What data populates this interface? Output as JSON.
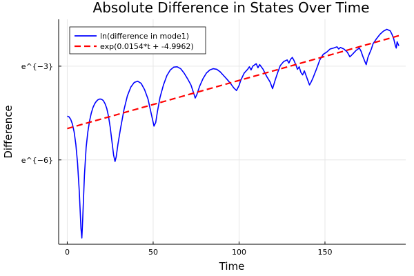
{
  "chart_data": {
    "type": "line",
    "title": "Absolute Difference in States Over Time",
    "xlabel": "Time",
    "ylabel": "Difference",
    "xlim": [
      -5,
      197
    ],
    "ylim": [
      -8.7,
      -1.5
    ],
    "xticks": [
      {
        "value": 0,
        "label": "0"
      },
      {
        "value": 50,
        "label": "50"
      },
      {
        "value": 100,
        "label": "100"
      },
      {
        "value": 150,
        "label": "150"
      }
    ],
    "yticks": [
      {
        "value": -3,
        "label": "e^{−3}"
      },
      {
        "value": -6,
        "label": "e^{−6}"
      }
    ],
    "grid": true,
    "legend_position": "top-left",
    "series": [
      {
        "name": "ln(difference in mode1)",
        "color": "#0000ff",
        "style": "solid",
        "points": [
          [
            0,
            -4.6
          ],
          [
            1,
            -4.62
          ],
          [
            2,
            -4.7
          ],
          [
            3,
            -4.85
          ],
          [
            4,
            -5.1
          ],
          [
            5,
            -5.5
          ],
          [
            6,
            -6.1
          ],
          [
            7,
            -7.0
          ],
          [
            8,
            -8.2
          ],
          [
            8.5,
            -8.5
          ],
          [
            9,
            -7.9
          ],
          [
            10,
            -6.5
          ],
          [
            11,
            -5.6
          ],
          [
            12,
            -5.1
          ],
          [
            13,
            -4.75
          ],
          [
            14,
            -4.5
          ],
          [
            15,
            -4.32
          ],
          [
            16,
            -4.2
          ],
          [
            17,
            -4.12
          ],
          [
            18,
            -4.07
          ],
          [
            19,
            -4.05
          ],
          [
            20,
            -4.06
          ],
          [
            21,
            -4.1
          ],
          [
            22,
            -4.2
          ],
          [
            23,
            -4.35
          ],
          [
            24,
            -4.6
          ],
          [
            25,
            -4.95
          ],
          [
            26,
            -5.4
          ],
          [
            27,
            -5.85
          ],
          [
            27.8,
            -6.05
          ],
          [
            28.5,
            -5.9
          ],
          [
            29.5,
            -5.5
          ],
          [
            31,
            -5.0
          ],
          [
            33,
            -4.4
          ],
          [
            35,
            -3.95
          ],
          [
            37,
            -3.67
          ],
          [
            39,
            -3.52
          ],
          [
            41,
            -3.48
          ],
          [
            43,
            -3.55
          ],
          [
            45,
            -3.75
          ],
          [
            47,
            -4.05
          ],
          [
            49,
            -4.55
          ],
          [
            50.5,
            -4.92
          ],
          [
            51.5,
            -4.8
          ],
          [
            52.5,
            -4.45
          ],
          [
            54,
            -4.0
          ],
          [
            56,
            -3.6
          ],
          [
            58,
            -3.3
          ],
          [
            60,
            -3.12
          ],
          [
            62,
            -3.03
          ],
          [
            64,
            -3.02
          ],
          [
            66,
            -3.08
          ],
          [
            68,
            -3.22
          ],
          [
            70,
            -3.4
          ],
          [
            72,
            -3.6
          ],
          [
            73.5,
            -3.85
          ],
          [
            74.5,
            -4.02
          ],
          [
            75.5,
            -3.9
          ],
          [
            77,
            -3.65
          ],
          [
            79,
            -3.4
          ],
          [
            81,
            -3.22
          ],
          [
            83,
            -3.12
          ],
          [
            85,
            -3.08
          ],
          [
            87,
            -3.1
          ],
          [
            89,
            -3.18
          ],
          [
            91,
            -3.3
          ],
          [
            93,
            -3.42
          ],
          [
            95,
            -3.55
          ],
          [
            97,
            -3.7
          ],
          [
            98.5,
            -3.78
          ],
          [
            100,
            -3.62
          ],
          [
            101,
            -3.45
          ],
          [
            103,
            -3.22
          ],
          [
            105,
            -3.1
          ],
          [
            106,
            -3.02
          ],
          [
            107,
            -3.12
          ],
          [
            108,
            -3.0
          ],
          [
            110,
            -2.92
          ],
          [
            111,
            -3.05
          ],
          [
            112,
            -2.95
          ],
          [
            114,
            -3.1
          ],
          [
            116,
            -3.32
          ],
          [
            118,
            -3.5
          ],
          [
            119.5,
            -3.72
          ],
          [
            121,
            -3.45
          ],
          [
            122.5,
            -3.2
          ],
          [
            124,
            -2.98
          ],
          [
            126,
            -2.85
          ],
          [
            128,
            -2.8
          ],
          [
            129,
            -2.9
          ],
          [
            130,
            -2.78
          ],
          [
            131,
            -2.72
          ],
          [
            132,
            -2.82
          ],
          [
            133,
            -2.95
          ],
          [
            134,
            -3.1
          ],
          [
            135,
            -3.02
          ],
          [
            136,
            -3.2
          ],
          [
            137,
            -3.28
          ],
          [
            138,
            -3.15
          ],
          [
            139,
            -3.3
          ],
          [
            140,
            -3.45
          ],
          [
            141,
            -3.6
          ],
          [
            142,
            -3.5
          ],
          [
            143,
            -3.38
          ],
          [
            145,
            -3.1
          ],
          [
            147,
            -2.8
          ],
          [
            149,
            -2.62
          ],
          [
            151,
            -2.55
          ],
          [
            153,
            -2.45
          ],
          [
            155,
            -2.42
          ],
          [
            157,
            -2.38
          ],
          [
            158,
            -2.45
          ],
          [
            159,
            -2.4
          ],
          [
            161,
            -2.45
          ],
          [
            163,
            -2.55
          ],
          [
            164.5,
            -2.7
          ],
          [
            166,
            -2.62
          ],
          [
            168,
            -2.5
          ],
          [
            170,
            -2.42
          ],
          [
            171,
            -2.52
          ],
          [
            172,
            -2.68
          ],
          [
            173,
            -2.82
          ],
          [
            174,
            -2.95
          ],
          [
            175,
            -2.72
          ],
          [
            176,
            -2.58
          ],
          [
            177,
            -2.45
          ],
          [
            178,
            -2.28
          ],
          [
            180,
            -2.12
          ],
          [
            182,
            -1.98
          ],
          [
            184,
            -1.88
          ],
          [
            186,
            -1.82
          ],
          [
            188,
            -1.87
          ],
          [
            189,
            -1.98
          ],
          [
            190,
            -2.12
          ],
          [
            191,
            -2.35
          ],
          [
            191.5,
            -2.42
          ],
          [
            192,
            -2.22
          ],
          [
            193,
            -2.35
          ]
        ]
      },
      {
        "name": "exp(0.0154*t + -4.9962)",
        "color": "#ff0000",
        "style": "dashed",
        "intercept": -4.9962,
        "slope": 0.0154,
        "t_range": [
          0,
          193
        ]
      }
    ]
  }
}
